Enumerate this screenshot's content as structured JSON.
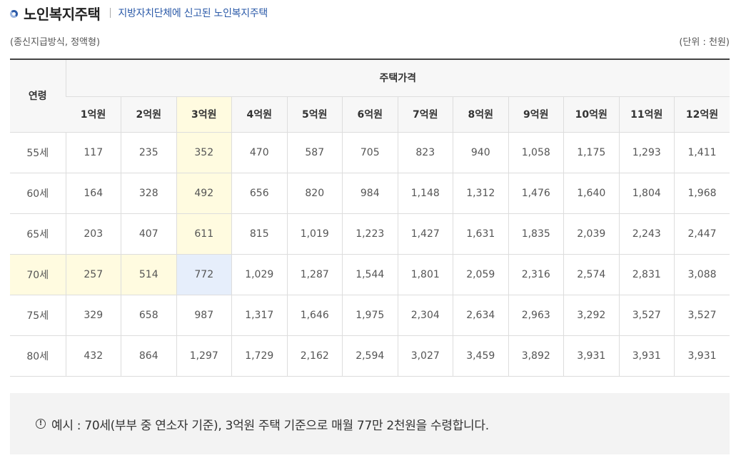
{
  "header": {
    "title": "노인복지주택",
    "subtitle": "지방자치단체에 신고된 노인복지주택"
  },
  "notes": {
    "method": "(종신지급방식, 정액형)",
    "unit": "(단위 : 천원)"
  },
  "table": {
    "age_header": "연령",
    "price_header": "주택가격",
    "columns": [
      "1억원",
      "2억원",
      "3억원",
      "4억원",
      "5억원",
      "6억원",
      "7억원",
      "8억원",
      "9억원",
      "10억원",
      "11억원",
      "12억원"
    ],
    "rows": [
      {
        "age": "55세",
        "values": [
          "117",
          "235",
          "352",
          "470",
          "587",
          "705",
          "823",
          "940",
          "1,058",
          "1,175",
          "1,293",
          "1,411"
        ]
      },
      {
        "age": "60세",
        "values": [
          "164",
          "328",
          "492",
          "656",
          "820",
          "984",
          "1,148",
          "1,312",
          "1,476",
          "1,640",
          "1,804",
          "1,968"
        ]
      },
      {
        "age": "65세",
        "values": [
          "203",
          "407",
          "611",
          "815",
          "1,019",
          "1,223",
          "1,427",
          "1,631",
          "1,835",
          "2,039",
          "2,243",
          "2,447"
        ]
      },
      {
        "age": "70세",
        "values": [
          "257",
          "514",
          "772",
          "1,029",
          "1,287",
          "1,544",
          "1,801",
          "2,059",
          "2,316",
          "2,574",
          "2,831",
          "3,088"
        ]
      },
      {
        "age": "75세",
        "values": [
          "329",
          "658",
          "987",
          "1,317",
          "1,646",
          "1,975",
          "2,304",
          "2,634",
          "2,963",
          "3,292",
          "3,527",
          "3,527"
        ]
      },
      {
        "age": "80세",
        "values": [
          "432",
          "864",
          "1,297",
          "1,729",
          "2,162",
          "2,594",
          "3,027",
          "3,459",
          "3,892",
          "3,931",
          "3,931",
          "3,931"
        ]
      }
    ],
    "highlight": {
      "column": "3억원",
      "row": "70세"
    }
  },
  "example": {
    "icon": "alert-circle-icon",
    "text": "예시 : 70세(부부 중 연소자 기준), 3억원 주택 기준으로 매월 77만 2천원을 수령합니다."
  },
  "colors": {
    "accent": "#2b5aa8",
    "highlight_yellow": "#fffbe0",
    "highlight_blue": "#e6eefb",
    "header_bg": "#f7f7f7",
    "example_bg": "#f3f3f3"
  }
}
